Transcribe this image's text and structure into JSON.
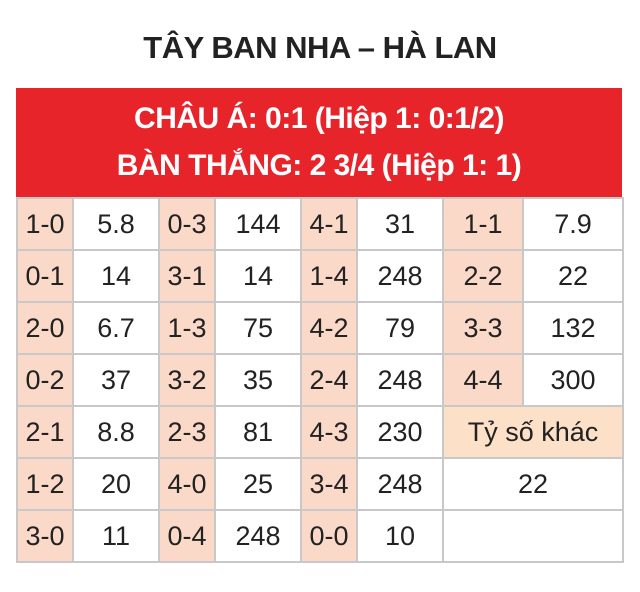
{
  "title": "TÂY BAN NHA – HÀ LAN",
  "header": {
    "line1": "CHÂU Á: 0:1 (Hiệp 1: 0:1/2)",
    "line2": "BÀN THẮNG: 2 3/4 (Hiệp 1: 1)"
  },
  "colors": {
    "header_bg": "#e8242b",
    "score_bg": "#fbd9c9"
  },
  "rows": [
    [
      [
        "1-0",
        "5.8"
      ],
      [
        "0-3",
        "144"
      ],
      [
        "4-1",
        "31"
      ],
      [
        "1-1",
        "7.9"
      ]
    ],
    [
      [
        "0-1",
        "14"
      ],
      [
        "3-1",
        "14"
      ],
      [
        "1-4",
        "248"
      ],
      [
        "2-2",
        "22"
      ]
    ],
    [
      [
        "2-0",
        "6.7"
      ],
      [
        "1-3",
        "75"
      ],
      [
        "4-2",
        "79"
      ],
      [
        "3-3",
        "132"
      ]
    ],
    [
      [
        "0-2",
        "37"
      ],
      [
        "3-2",
        "35"
      ],
      [
        "2-4",
        "248"
      ],
      [
        "4-4",
        "300"
      ]
    ],
    [
      [
        "2-1",
        "8.8"
      ],
      [
        "2-3",
        "81"
      ],
      [
        "4-3",
        "230"
      ]
    ],
    [
      [
        "1-2",
        "20"
      ],
      [
        "4-0",
        "25"
      ],
      [
        "3-4",
        "248"
      ]
    ],
    [
      [
        "3-0",
        "11"
      ],
      [
        "0-4",
        "248"
      ],
      [
        "0-0",
        "10"
      ]
    ]
  ],
  "other": {
    "label": "Tỷ số khác",
    "value": "22"
  }
}
